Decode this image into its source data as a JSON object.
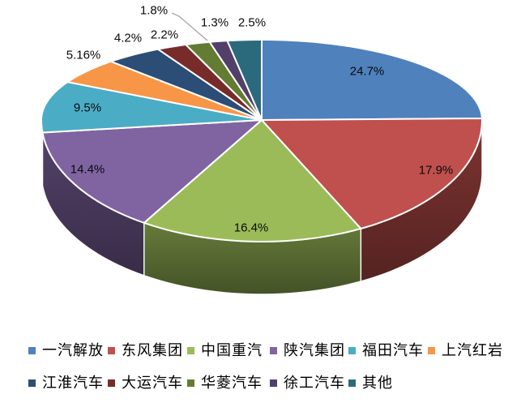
{
  "chart_data": {
    "type": "pie",
    "effect": "3d",
    "start_angle_deg": 0,
    "direction": "clockwise",
    "categories": [
      "一汽解放",
      "东风集团",
      "中国重汽",
      "陕汽集团",
      "福田汽车",
      "上汽红岩",
      "江淮汽车",
      "大运汽车",
      "华菱汽车",
      "徐工汽车",
      "其他"
    ],
    "values": [
      24.7,
      17.9,
      16.4,
      14.4,
      9.5,
      5.16,
      4.2,
      2.2,
      1.8,
      1.3,
      2.5
    ],
    "data_labels": [
      "24.7%",
      "17.9%",
      "16.4%",
      "14.4%",
      "9.5%",
      "5.16%",
      "4.2%",
      "2.2%",
      "1.8%",
      "1.3%",
      "2.5%"
    ],
    "colors": [
      "#4F81BD",
      "#C0504D",
      "#9BBB59",
      "#8064A2",
      "#4BACC6",
      "#F79646",
      "#2C4D75",
      "#772C2A",
      "#647B33",
      "#52406B",
      "#2B6A7C"
    ],
    "title": "",
    "legend_position": "bottom",
    "legend_rows": 2,
    "background_color": "#FFFFFF",
    "label_color": "#000000",
    "leader_line_color": "#A6A6A6",
    "slice_border_color": "#FFFFFF"
  }
}
